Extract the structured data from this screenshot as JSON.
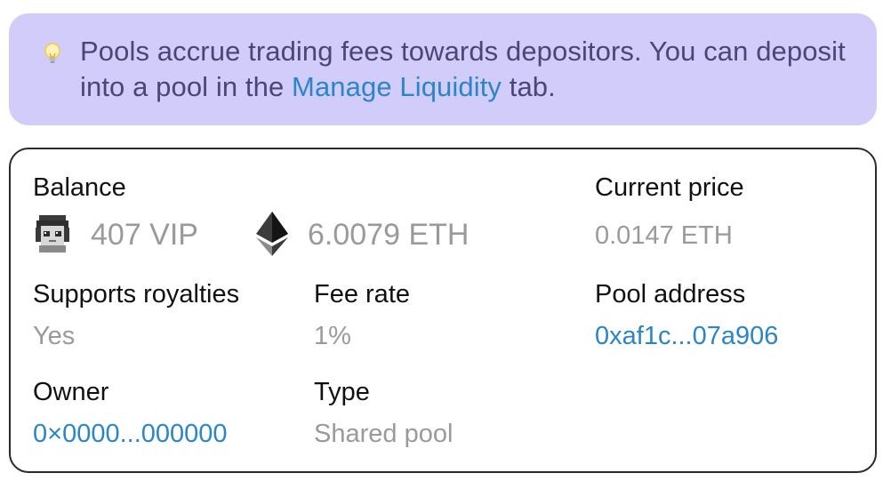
{
  "banner": {
    "icon": "lightbulb-icon",
    "text_before": "Pools accrue trading fees towards depositors. You can deposit into a pool in the ",
    "link_text": "Manage Liquidity",
    "text_after": " tab."
  },
  "card": {
    "balance": {
      "label": "Balance",
      "token_amount": "407 VIP",
      "token_icon": "pixel-avatar-icon",
      "eth_amount": "6.0079 ETH",
      "eth_icon": "ethereum-icon"
    },
    "current_price": {
      "label": "Current price",
      "value": "0.0147 ETH"
    },
    "supports_royalties": {
      "label": "Supports royalties",
      "value": "Yes"
    },
    "fee_rate": {
      "label": "Fee rate",
      "value": "1%"
    },
    "pool_address": {
      "label": "Pool address",
      "value": "0xaf1c...07a906"
    },
    "owner": {
      "label": "Owner",
      "value": "0×0000...000000"
    },
    "type": {
      "label": "Type",
      "value": "Shared pool"
    }
  },
  "colors": {
    "banner_bg": "#d2ccfb",
    "banner_text": "#4b4578",
    "link": "#2b85c9",
    "muted": "#9a9a9a"
  }
}
